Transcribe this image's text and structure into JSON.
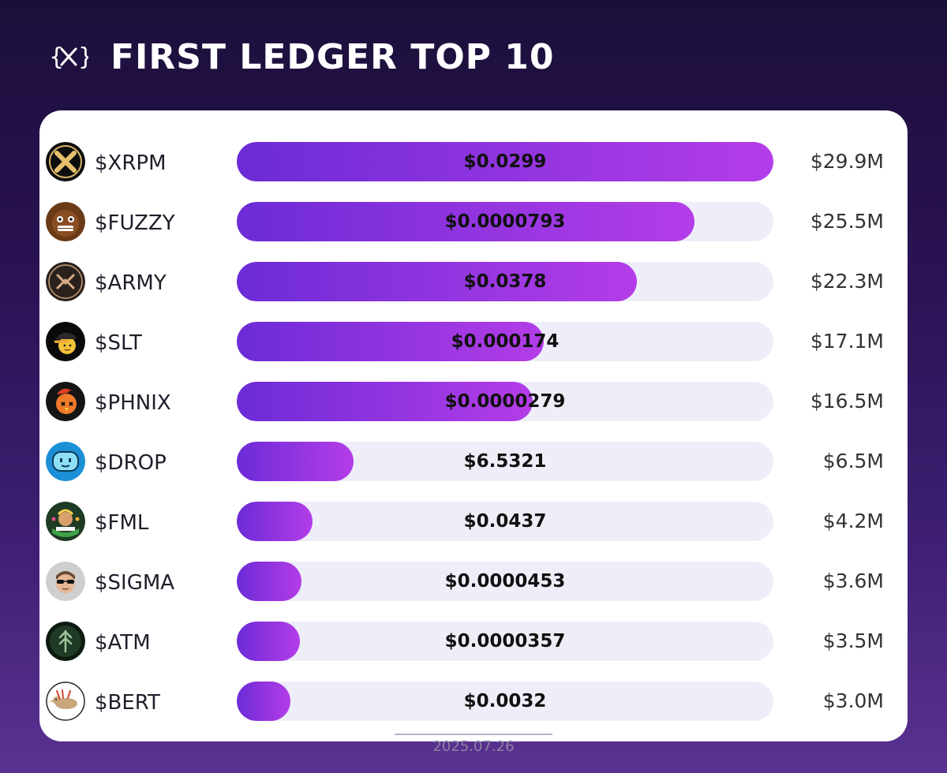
{
  "header": {
    "title": "FIRST LEDGER TOP 10",
    "logo_icon": "xrp-curly-x-icon"
  },
  "footer": {
    "date": "2025.07.26"
  },
  "colors": {
    "bar_start": "#6c2bd6",
    "bar_end": "#b43de8",
    "track": "#eeeef9",
    "card": "#ffffff"
  },
  "chart_data": {
    "type": "bar",
    "title": "FIRST LEDGER TOP 10",
    "orientation": "horizontal",
    "ylim": [
      0,
      29.9
    ],
    "value_unit": "market cap ($M)",
    "categories": [
      "$XRPM",
      "$FUZZY",
      "$ARMY",
      "$SLT",
      "$PHNIX",
      "$DROP",
      "$FML",
      "$SIGMA",
      "$ATM",
      "$BERT"
    ],
    "values": [
      29.9,
      25.5,
      22.3,
      17.1,
      16.5,
      6.5,
      4.2,
      3.6,
      3.5,
      3.0
    ],
    "rows": [
      {
        "ticker": "$XRPM",
        "price": "$0.0299",
        "mcap": "$29.9M",
        "value": 29.9,
        "icon": "xrpm-logo-icon"
      },
      {
        "ticker": "$FUZZY",
        "price": "$0.0000793",
        "mcap": "$25.5M",
        "value": 25.5,
        "icon": "fuzzy-face-icon"
      },
      {
        "ticker": "$ARMY",
        "price": "$0.0378",
        "mcap": "$22.3M",
        "value": 22.3,
        "icon": "army-logo-icon"
      },
      {
        "ticker": "$SLT",
        "price": "$0.000174",
        "mcap": "$17.1M",
        "value": 17.1,
        "icon": "slt-cap-face-icon"
      },
      {
        "ticker": "$PHNIX",
        "price": "$0.0000279",
        "mcap": "$16.5M",
        "value": 16.5,
        "icon": "phoenix-bird-icon"
      },
      {
        "ticker": "$DROP",
        "price": "$6.5321",
        "mcap": "$6.5M",
        "value": 6.5,
        "icon": "drop-blob-icon"
      },
      {
        "ticker": "$FML",
        "price": "$0.0437",
        "mcap": "$4.2M",
        "value": 4.2,
        "icon": "fml-floridaman-icon"
      },
      {
        "ticker": "$SIGMA",
        "price": "$0.0000453",
        "mcap": "$3.6M",
        "value": 3.6,
        "icon": "sigma-sunglasses-icon"
      },
      {
        "ticker": "$ATM",
        "price": "$0.0000357",
        "mcap": "$3.5M",
        "value": 3.5,
        "icon": "atm-rune-icon"
      },
      {
        "ticker": "$BERT",
        "price": "$0.0032",
        "mcap": "$3.0M",
        "value": 3.0,
        "icon": "bert-bird-icon"
      }
    ]
  }
}
